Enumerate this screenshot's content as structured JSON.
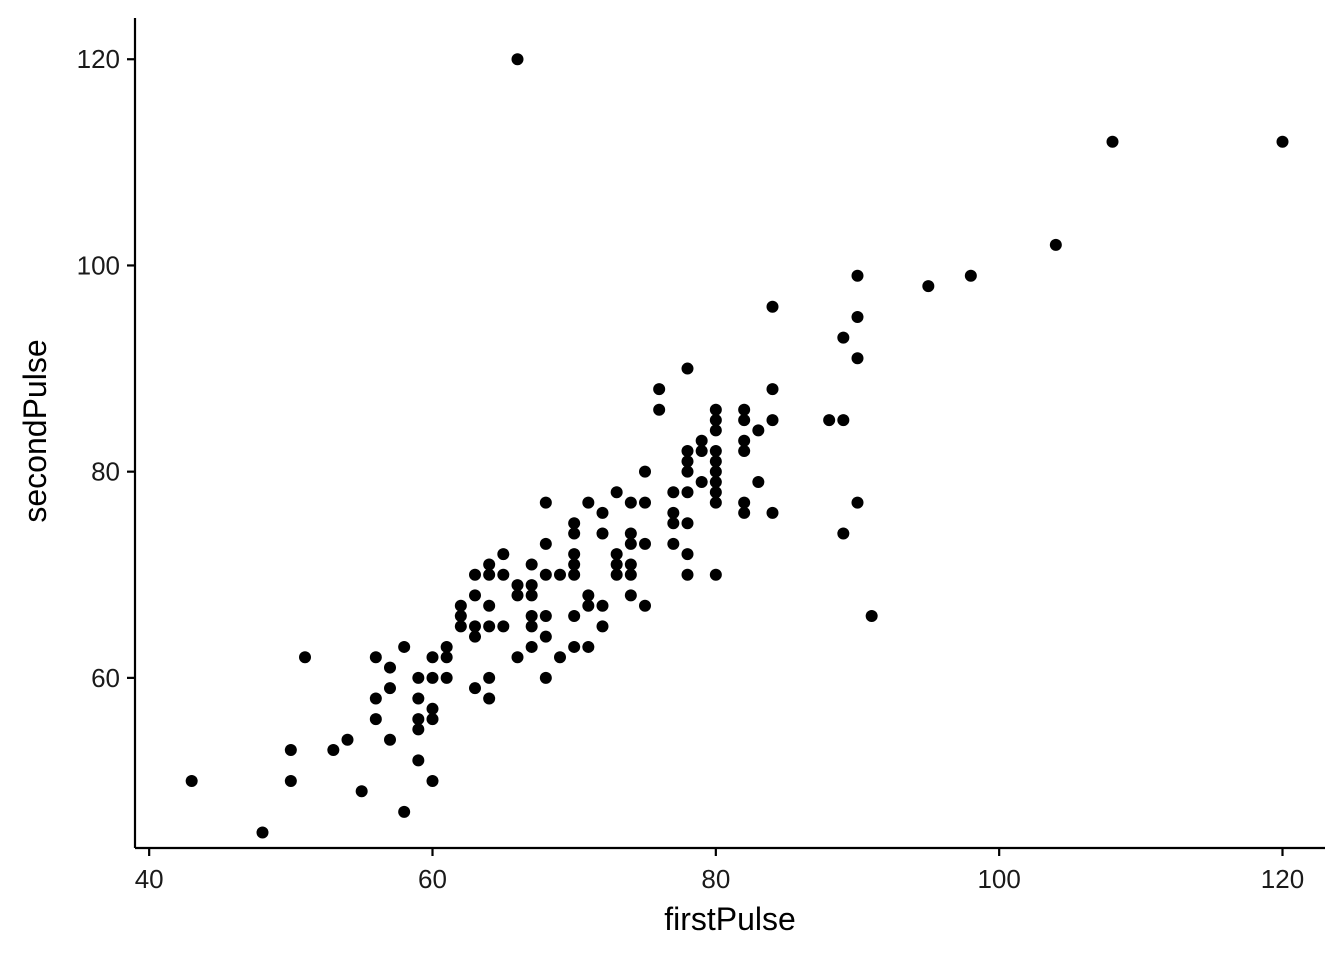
{
  "chart_data": {
    "type": "scatter",
    "xlabel": "firstPulse",
    "ylabel": "secondPulse",
    "xlim": [
      39,
      123
    ],
    "ylim": [
      43.5,
      124
    ],
    "x_ticks": [
      40,
      60,
      80,
      100,
      120
    ],
    "y_ticks": [
      60,
      80,
      100,
      120
    ],
    "x_tick_labels": [
      "40",
      "60",
      "80",
      "100",
      "120"
    ],
    "y_tick_labels": [
      "60",
      "80",
      "100",
      "120"
    ],
    "grid": false,
    "point_color": "#000000",
    "points": [
      [
        43,
        50
      ],
      [
        48,
        45
      ],
      [
        50,
        53
      ],
      [
        50,
        50
      ],
      [
        51,
        62
      ],
      [
        53,
        53
      ],
      [
        54,
        54
      ],
      [
        55,
        49
      ],
      [
        56,
        62
      ],
      [
        56,
        58
      ],
      [
        56,
        56
      ],
      [
        57,
        61
      ],
      [
        57,
        59
      ],
      [
        57,
        54
      ],
      [
        58,
        63
      ],
      [
        58,
        47
      ],
      [
        59,
        60
      ],
      [
        59,
        58
      ],
      [
        59,
        56
      ],
      [
        59,
        55
      ],
      [
        59,
        52
      ],
      [
        60,
        62
      ],
      [
        60,
        60
      ],
      [
        60,
        57
      ],
      [
        60,
        56
      ],
      [
        60,
        50
      ],
      [
        61,
        63
      ],
      [
        61,
        62
      ],
      [
        61,
        60
      ],
      [
        62,
        67
      ],
      [
        62,
        66
      ],
      [
        62,
        65
      ],
      [
        63,
        70
      ],
      [
        63,
        68
      ],
      [
        63,
        65
      ],
      [
        63,
        64
      ],
      [
        63,
        59
      ],
      [
        64,
        71
      ],
      [
        64,
        70
      ],
      [
        64,
        67
      ],
      [
        64,
        65
      ],
      [
        64,
        60
      ],
      [
        64,
        58
      ],
      [
        65,
        72
      ],
      [
        65,
        70
      ],
      [
        65,
        65
      ],
      [
        66,
        69
      ],
      [
        66,
        68
      ],
      [
        66,
        62
      ],
      [
        66,
        120
      ],
      [
        67,
        71
      ],
      [
        67,
        69
      ],
      [
        67,
        68
      ],
      [
        67,
        66
      ],
      [
        67,
        65
      ],
      [
        67,
        63
      ],
      [
        68,
        77
      ],
      [
        68,
        73
      ],
      [
        68,
        70
      ],
      [
        68,
        66
      ],
      [
        68,
        64
      ],
      [
        68,
        60
      ],
      [
        69,
        70
      ],
      [
        69,
        62
      ],
      [
        70,
        75
      ],
      [
        70,
        74
      ],
      [
        70,
        72
      ],
      [
        70,
        71
      ],
      [
        70,
        70
      ],
      [
        70,
        66
      ],
      [
        70,
        63
      ],
      [
        71,
        77
      ],
      [
        71,
        68
      ],
      [
        71,
        67
      ],
      [
        71,
        63
      ],
      [
        72,
        76
      ],
      [
        72,
        74
      ],
      [
        72,
        67
      ],
      [
        72,
        65
      ],
      [
        73,
        78
      ],
      [
        73,
        72
      ],
      [
        73,
        71
      ],
      [
        73,
        70
      ],
      [
        74,
        77
      ],
      [
        74,
        74
      ],
      [
        74,
        73
      ],
      [
        74,
        71
      ],
      [
        74,
        70
      ],
      [
        74,
        68
      ],
      [
        75,
        80
      ],
      [
        75,
        77
      ],
      [
        75,
        73
      ],
      [
        75,
        67
      ],
      [
        76,
        88
      ],
      [
        76,
        86
      ],
      [
        77,
        78
      ],
      [
        77,
        76
      ],
      [
        77,
        75
      ],
      [
        77,
        73
      ],
      [
        78,
        90
      ],
      [
        78,
        82
      ],
      [
        78,
        81
      ],
      [
        78,
        80
      ],
      [
        78,
        78
      ],
      [
        78,
        75
      ],
      [
        78,
        72
      ],
      [
        78,
        70
      ],
      [
        79,
        83
      ],
      [
        79,
        82
      ],
      [
        79,
        79
      ],
      [
        80,
        86
      ],
      [
        80,
        85
      ],
      [
        80,
        84
      ],
      [
        80,
        82
      ],
      [
        80,
        81
      ],
      [
        80,
        80
      ],
      [
        80,
        79
      ],
      [
        80,
        78
      ],
      [
        80,
        77
      ],
      [
        80,
        70
      ],
      [
        82,
        86
      ],
      [
        82,
        85
      ],
      [
        82,
        83
      ],
      [
        82,
        82
      ],
      [
        82,
        77
      ],
      [
        82,
        76
      ],
      [
        83,
        84
      ],
      [
        83,
        79
      ],
      [
        84,
        96
      ],
      [
        84,
        88
      ],
      [
        84,
        85
      ],
      [
        84,
        76
      ],
      [
        88,
        85
      ],
      [
        89,
        93
      ],
      [
        89,
        85
      ],
      [
        89,
        74
      ],
      [
        90,
        99
      ],
      [
        90,
        95
      ],
      [
        90,
        91
      ],
      [
        90,
        77
      ],
      [
        91,
        66
      ],
      [
        95,
        98
      ],
      [
        98,
        99
      ],
      [
        104,
        102
      ],
      [
        108,
        112
      ],
      [
        120,
        112
      ]
    ]
  }
}
